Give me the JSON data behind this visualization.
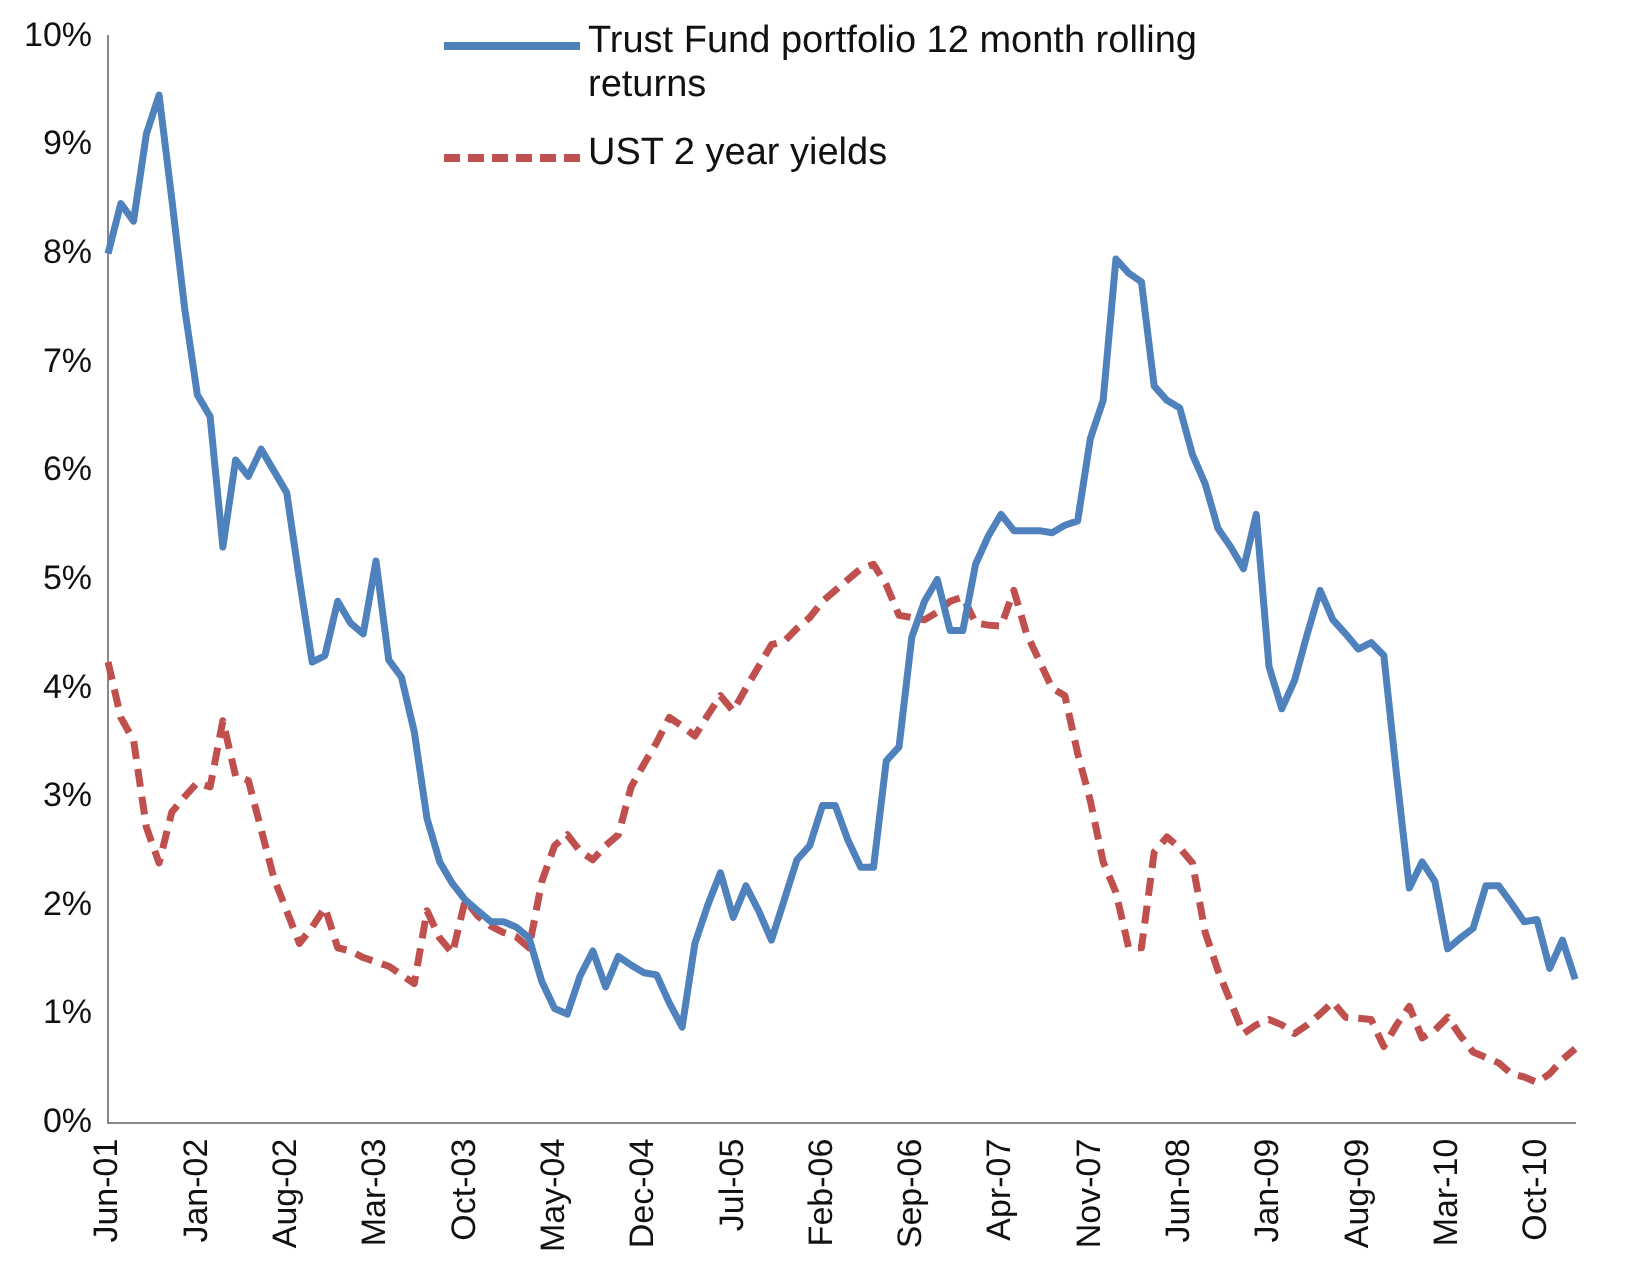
{
  "chart_data": {
    "type": "line",
    "categories": [
      "Jun-01",
      null,
      null,
      null,
      null,
      null,
      null,
      "Jan-02",
      null,
      null,
      null,
      null,
      null,
      null,
      "Aug-02",
      null,
      null,
      null,
      null,
      null,
      null,
      "Mar-03",
      null,
      null,
      null,
      null,
      null,
      null,
      "Oct-03",
      null,
      null,
      null,
      null,
      null,
      null,
      "May-04",
      null,
      null,
      null,
      null,
      null,
      null,
      "Dec-04",
      null,
      null,
      null,
      null,
      null,
      null,
      "Jul-05",
      null,
      null,
      null,
      null,
      null,
      null,
      "Feb-06",
      null,
      null,
      null,
      null,
      null,
      null,
      "Sep-06",
      null,
      null,
      null,
      null,
      null,
      null,
      "Apr-07",
      null,
      null,
      null,
      null,
      null,
      null,
      "Nov-07",
      null,
      null,
      null,
      null,
      null,
      null,
      "Jun-08",
      null,
      null,
      null,
      null,
      null,
      null,
      "Jan-09",
      null,
      null,
      null,
      null,
      null,
      null,
      "Aug-09",
      null,
      null,
      null,
      null,
      null,
      null,
      "Mar-10",
      null,
      null,
      null,
      null,
      null,
      null,
      "Oct-10",
      null,
      null,
      null
    ],
    "series": [
      {
        "name": "Trust Fund portfolio 12 month rolling returns",
        "color": "#4f81bd",
        "line_style": "solid",
        "values": [
          8.0,
          8.46,
          8.3,
          9.1,
          9.46,
          8.5,
          7.5,
          6.7,
          6.5,
          5.3,
          6.1,
          5.95,
          6.2,
          6.0,
          5.8,
          5.0,
          4.24,
          4.3,
          4.8,
          4.6,
          4.5,
          5.17,
          4.26,
          4.1,
          3.6,
          2.8,
          2.4,
          2.2,
          2.05,
          1.95,
          1.85,
          1.85,
          1.8,
          1.7,
          1.3,
          1.05,
          1.0,
          1.35,
          1.58,
          1.25,
          1.53,
          1.45,
          1.38,
          1.36,
          1.1,
          0.88,
          1.65,
          2.0,
          2.3,
          1.89,
          2.18,
          1.95,
          1.68,
          2.05,
          2.42,
          2.55,
          2.92,
          2.92,
          2.6,
          2.35,
          2.35,
          3.33,
          3.46,
          4.47,
          4.8,
          5.0,
          4.53,
          4.53,
          5.14,
          5.4,
          5.6,
          5.45,
          5.45,
          5.45,
          5.43,
          5.5,
          5.54,
          6.3,
          6.65,
          7.95,
          7.82,
          7.74,
          6.78,
          6.65,
          6.58,
          6.15,
          5.88,
          5.47,
          5.3,
          5.1,
          5.6,
          4.2,
          3.81,
          4.07,
          4.5,
          4.9,
          4.63,
          4.5,
          4.36,
          4.42,
          4.3,
          3.2,
          2.16,
          2.4,
          2.22,
          1.6,
          1.7,
          1.79,
          2.18,
          2.18,
          2.02,
          1.85,
          1.87,
          1.42,
          1.68,
          1.32
        ]
      },
      {
        "name": "UST 2 year yields",
        "color": "#c0504d",
        "line_style": "dashed",
        "values": [
          4.24,
          3.73,
          3.52,
          2.72,
          2.39,
          2.86,
          3.0,
          3.13,
          3.09,
          3.7,
          3.19,
          3.15,
          2.7,
          2.25,
          1.95,
          1.65,
          1.8,
          1.98,
          1.61,
          1.58,
          1.52,
          1.48,
          1.44,
          1.36,
          1.28,
          1.95,
          1.7,
          1.56,
          2.05,
          1.9,
          1.81,
          1.75,
          1.71,
          1.61,
          2.22,
          2.55,
          2.65,
          2.5,
          2.42,
          2.55,
          2.65,
          3.09,
          3.3,
          3.5,
          3.73,
          3.65,
          3.56,
          3.75,
          3.93,
          3.79,
          4.0,
          4.2,
          4.4,
          4.43,
          4.55,
          4.65,
          4.8,
          4.9,
          5.0,
          5.1,
          5.14,
          4.95,
          4.67,
          4.65,
          4.63,
          4.7,
          4.8,
          4.84,
          4.6,
          4.58,
          4.57,
          4.9,
          4.5,
          4.25,
          4.0,
          3.93,
          3.4,
          2.96,
          2.4,
          2.12,
          1.61,
          1.61,
          2.49,
          2.63,
          2.53,
          2.39,
          1.75,
          1.4,
          1.11,
          0.82,
          0.9,
          0.95,
          0.9,
          0.82,
          0.9,
          1.0,
          1.11,
          0.97,
          0.96,
          0.95,
          0.7,
          0.9,
          1.07,
          0.78,
          0.85,
          0.97,
          0.8,
          0.65,
          0.6,
          0.55,
          0.45,
          0.42,
          0.37,
          0.45,
          0.58,
          0.68
        ]
      }
    ],
    "ylim": [
      0,
      10
    ],
    "yticks": [
      {
        "value": 0,
        "label": "0%"
      },
      {
        "value": 1,
        "label": "1%"
      },
      {
        "value": 2,
        "label": "2%"
      },
      {
        "value": 3,
        "label": "3%"
      },
      {
        "value": 4,
        "label": "4%"
      },
      {
        "value": 5,
        "label": "5%"
      },
      {
        "value": 6,
        "label": "6%"
      },
      {
        "value": 7,
        "label": "7%"
      },
      {
        "value": 8,
        "label": "8%"
      },
      {
        "value": 9,
        "label": "9%"
      },
      {
        "value": 10,
        "label": "10%"
      }
    ],
    "grid": false,
    "legend": "top",
    "marker": "none"
  }
}
